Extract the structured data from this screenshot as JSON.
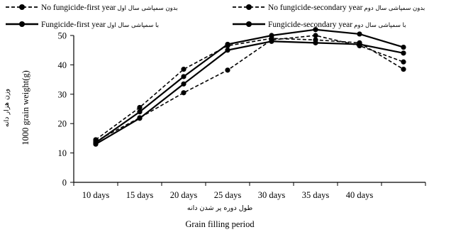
{
  "chart_data": {
    "type": "line",
    "xlabel": "Grain filling period",
    "xlabel_fa": "طول دوره پر شدن دانه",
    "ylabel": "1000  grain weight(g)",
    "ylabel_fa": "وزن هزار دانه",
    "ylim": [
      0,
      50
    ],
    "yticks": [
      0,
      10,
      20,
      30,
      40,
      50
    ],
    "categories": [
      "10 days",
      "15 days",
      "20 days",
      "25 days",
      "30 days",
      "35 days",
      "40 days",
      ""
    ],
    "grid": false,
    "legend_position": "top",
    "series": [
      {
        "name": "No fungicide-first  year",
        "name_fa": "بدون سمپاشی سال اول",
        "values": [
          14.5,
          25.5,
          38.5,
          46.5,
          49,
          48.5,
          47.5,
          38.5
        ],
        "line": "dashed",
        "color": "#000000"
      },
      {
        "name": "No fungicide-secondary  year",
        "name_fa": "بدون سمپاشی سال دوم",
        "values": [
          14,
          22,
          30.5,
          38.2,
          48.5,
          50,
          46.5,
          41
        ],
        "line": "dashed",
        "color": "#000000"
      },
      {
        "name": "Fungicide-first  year",
        "name_fa": "با سمپاشی سال اول",
        "values": [
          13,
          21.8,
          33.5,
          45,
          48,
          47.5,
          47,
          44
        ],
        "line": "solid",
        "color": "#000000"
      },
      {
        "name": "Fungicide-secondary  year",
        "name_fa": "با سمپاشی سال دوم",
        "values": [
          13.5,
          24,
          36,
          47,
          50,
          52,
          50.5,
          46
        ],
        "line": "solid",
        "color": "#000000"
      }
    ]
  }
}
